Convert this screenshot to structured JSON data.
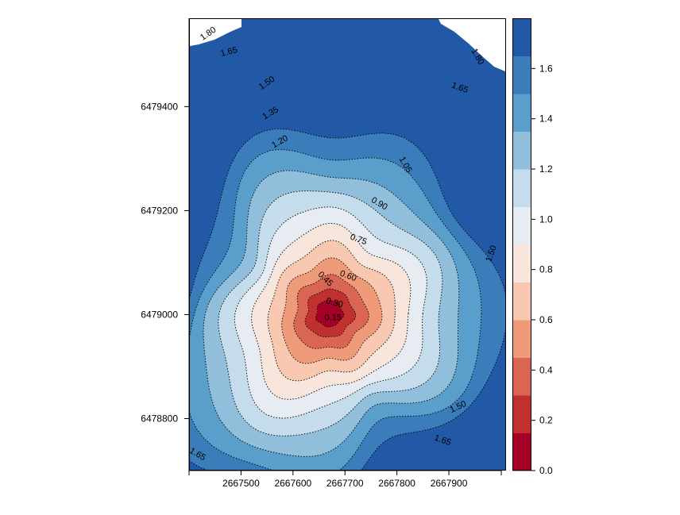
{
  "chart_data": {
    "type": "heatmap",
    "title": "",
    "xlabel": "",
    "ylabel": "",
    "x_ticks": [
      2667500,
      2667600,
      2667700,
      2667800,
      2667900
    ],
    "y_ticks": [
      6478800,
      6479000,
      6479200,
      6479400
    ],
    "x_tick_labels": [
      "2667500",
      "2667600",
      "2667700",
      "2667800",
      "2667900"
    ],
    "y_tick_labels": [
      "6478800",
      "6479000",
      "6479200",
      "6479400"
    ],
    "xlim": [
      2667400,
      2668010
    ],
    "ylim": [
      6478700,
      6479570
    ],
    "peak_center": [
      2667670,
      6478990
    ],
    "levels": [
      0,
      0.15,
      0.3,
      0.45,
      0.6,
      0.75,
      0.9,
      1.05,
      1.2,
      1.35,
      1.5,
      1.65,
      1.8
    ],
    "colors": [
      "#a50026",
      "#c0302f",
      "#d96653",
      "#ef9b7a",
      "#f8c9b0",
      "#f8e5dc",
      "#e6ecf2",
      "#c4dceb",
      "#90bedb",
      "#5a9fcb",
      "#3a7dba",
      "#2159a6"
    ],
    "colorbar": {
      "ticks": [
        0.0,
        0.2,
        0.4,
        0.6,
        0.8,
        1.0,
        1.2,
        1.4,
        1.6
      ],
      "tick_labels": [
        "0.0",
        "0.2",
        "0.4",
        "0.6",
        "0.8",
        "1.0",
        "1.2",
        "1.4",
        "1.6"
      ],
      "range": [
        0,
        1.8
      ]
    },
    "contour_labels": [
      {
        "text": "1.80",
        "x": 2667437,
        "y": 6479540,
        "angle": -35
      },
      {
        "text": "1.65",
        "x": 2667477,
        "y": 6479505,
        "angle": -15
      },
      {
        "text": "1.50",
        "x": 2667550,
        "y": 6479445,
        "angle": -35
      },
      {
        "text": "1.35",
        "x": 2667557,
        "y": 6479387,
        "angle": -30
      },
      {
        "text": "1.20",
        "x": 2667575,
        "y": 6479332,
        "angle": -30
      },
      {
        "text": "1.05",
        "x": 2667816,
        "y": 6479288,
        "angle": 60
      },
      {
        "text": "0.90",
        "x": 2667766,
        "y": 6479213,
        "angle": 30
      },
      {
        "text": "0.75",
        "x": 2667726,
        "y": 6479144,
        "angle": 20
      },
      {
        "text": "0.60",
        "x": 2667706,
        "y": 6479074,
        "angle": 20
      },
      {
        "text": "0.45",
        "x": 2667662,
        "y": 6479068,
        "angle": 45
      },
      {
        "text": "0.30",
        "x": 2667680,
        "y": 6479022,
        "angle": 15
      },
      {
        "text": "0.15",
        "x": 2667677,
        "y": 6478994,
        "angle": 0
      },
      {
        "text": "1.80",
        "x": 2667955,
        "y": 6479496,
        "angle": 60
      },
      {
        "text": "1.65",
        "x": 2667921,
        "y": 6479436,
        "angle": 20
      },
      {
        "text": "1.50",
        "x": 2667982,
        "y": 6479117,
        "angle": -70
      },
      {
        "text": "1.50",
        "x": 2667918,
        "y": 6478822,
        "angle": -25
      },
      {
        "text": "1.65",
        "x": 2667888,
        "y": 6478758,
        "angle": 20
      },
      {
        "text": "1.65",
        "x": 2667416,
        "y": 6478731,
        "angle": 30
      }
    ]
  }
}
